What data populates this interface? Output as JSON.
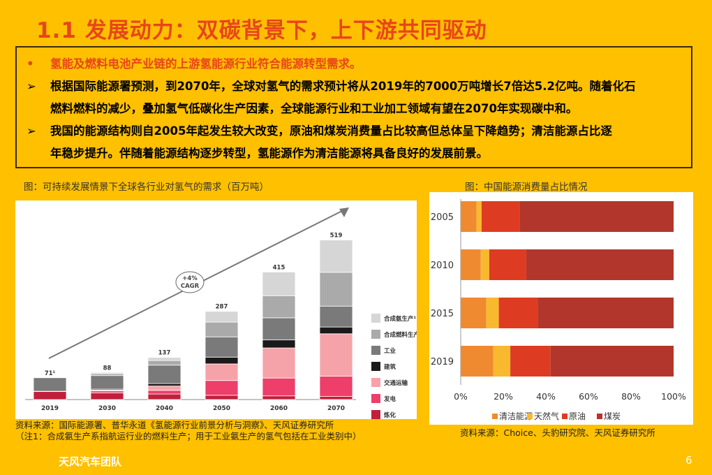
{
  "slide": {
    "title": "1.1 发展动力：双碳背景下，上下游共同驱动",
    "bullets": [
      {
        "marker": "•",
        "text": "氢能及燃料电池产业链的上游氢能源行业符合能源转型需求。"
      },
      {
        "marker": "➢",
        "text": "根据国际能源署预测，到2070年，全球对氢气的需求预计将从2019年的7000万吨增长7倍达5.2亿吨。随着化石"
      },
      {
        "marker": "",
        "text": "燃料燃料的减少，叠加氢气低碳化生产因素，全球能源行业和工业加工领域有望在2070年实现碳中和。"
      },
      {
        "marker": "➢",
        "text": "我国的能源结构则自2005年起发生较大改变，原油和煤炭消费量占比较高但总体呈下降趋势；清洁能源占比逐"
      },
      {
        "marker": "",
        "text": "年稳步提升。伴随着能源结构逐步转型，氢能源作为清洁能源将具备良好的发展前景。"
      }
    ],
    "left_caption": "图：可持续发展情景下全球各行业对氢气的需求（百万吨）",
    "right_caption": "图：中国能源消费量占比情况",
    "left_source_1": "资料来源：国际能源署、普华永道《氢能源行业前景分析与洞察》、天风证券研究所",
    "left_source_2": "（注1：合成氨生产系指航运行业的燃料生产；用于工业氨生产的氢气包括在工业类别中）",
    "right_source": "资料来源：Choice、头豹研究院、天风证券研究所",
    "team": "天风汽车团队",
    "page": "6",
    "colors": {
      "title": "#E8451A",
      "background": "#FFC000"
    }
  },
  "chart_data": [
    {
      "type": "bar",
      "stacked": true,
      "categories": [
        "2019",
        "2030",
        "2040",
        "2050",
        "2060",
        "2070"
      ],
      "totals_labels": [
        "71¹",
        "88",
        "137",
        "287",
        "415",
        "519"
      ],
      "totals": [
        71,
        88,
        137,
        287,
        415,
        519
      ],
      "annotation": "+4% CAGR",
      "series": [
        {
          "name": "炼化",
          "color": "#C0203B",
          "values": [
            26,
            22,
            18,
            14,
            12,
            10
          ]
        },
        {
          "name": "发电",
          "color": "#EE3E6A",
          "values": [
            1,
            6,
            12,
            48,
            58,
            66
          ]
        },
        {
          "name": "交通运输",
          "color": "#F5A3A8",
          "values": [
            0,
            3,
            14,
            54,
            98,
            138
          ]
        },
        {
          "name": "建筑",
          "color": "#1A1A1A",
          "values": [
            0,
            3,
            8,
            22,
            26,
            22
          ]
        },
        {
          "name": "工业",
          "color": "#7A7A7A",
          "values": [
            44,
            44,
            60,
            66,
            72,
            68
          ]
        },
        {
          "name": "合成燃料生产",
          "color": "#AAAAAA",
          "values": [
            0,
            6,
            15,
            48,
            72,
            110
          ]
        },
        {
          "name": "合成氨生产¹",
          "color": "#D6D6D6",
          "values": [
            0,
            4,
            10,
            35,
            77,
            105
          ]
        }
      ]
    },
    {
      "type": "bar",
      "orientation": "horizontal",
      "stacked_percent": true,
      "categories": [
        "2005",
        "2010",
        "2015",
        "2019"
      ],
      "xlim": [
        0,
        100
      ],
      "xticks": [
        "0%",
        "20%",
        "40%",
        "60%",
        "80%",
        "100%"
      ],
      "legend_position": "bottom",
      "series": [
        {
          "name": "清洁能源",
          "color": "#F08A30",
          "values": [
            7.4,
            9.4,
            12.0,
            15.3
          ]
        },
        {
          "name": "天然气",
          "color": "#F9B92E",
          "values": [
            2.4,
            4.0,
            5.9,
            8.0
          ]
        },
        {
          "name": "原油",
          "color": "#DE3C22",
          "values": [
            17.8,
            17.4,
            18.3,
            18.9
          ]
        },
        {
          "name": "煤炭",
          "color": "#B2362B",
          "values": [
            72.4,
            69.2,
            63.8,
            57.8
          ]
        }
      ]
    }
  ]
}
